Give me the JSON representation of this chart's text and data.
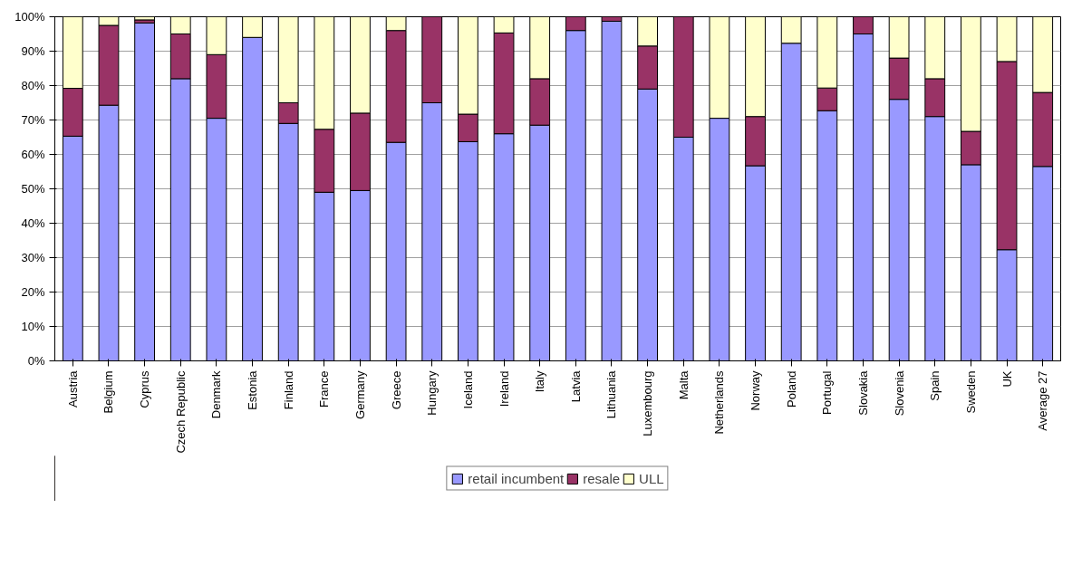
{
  "chart_data": {
    "type": "bar",
    "stacked": true,
    "categories": [
      "Austria",
      "Belgium",
      "Cyprus",
      "Czech Republic",
      "Denmark",
      "Estonia",
      "Finland",
      "France",
      "Germany",
      "Greece",
      "Hungary",
      "Iceland",
      "Ireland",
      "Italy",
      "Latvia",
      "Lithuania",
      "Luxembourg",
      "Malta",
      "Netherlands",
      "Norway",
      "Poland",
      "Portugal",
      "Slovakia",
      "Slovenia",
      "Spain",
      "Sweden",
      "UK",
      "Average 27"
    ],
    "series": [
      {
        "name": "retail incumbent",
        "color": "#9999ff",
        "values": [
          65.3,
          74.3,
          98.2,
          82,
          70.5,
          94,
          69,
          49,
          49.5,
          63.5,
          75,
          63.7,
          66,
          68.5,
          96,
          98.7,
          79,
          65,
          70.5,
          56.7,
          92.3,
          72.7,
          95,
          76,
          71,
          57,
          32.3,
          56.5
        ]
      },
      {
        "name": "resale",
        "color": "#993366",
        "values": [
          13.9,
          23.2,
          0.9,
          13,
          18.5,
          0,
          6,
          18.3,
          22.5,
          32.5,
          25,
          8,
          29.3,
          13.5,
          4,
          1.3,
          12.5,
          35,
          0,
          14.3,
          0,
          6.6,
          5,
          12,
          11,
          9.7,
          54.7,
          21.5
        ]
      },
      {
        "name": "ULL",
        "color": "#ffffcc",
        "values": [
          20.8,
          2.5,
          0.9,
          5,
          11,
          6,
          25,
          32.7,
          28,
          4,
          0,
          28.3,
          4.7,
          18,
          0,
          0,
          8.5,
          0,
          29.5,
          29,
          7.7,
          20.7,
          0,
          12,
          18,
          33.3,
          13,
          22
        ]
      }
    ],
    "ylim": [
      0,
      100
    ],
    "yticks": [
      {
        "value": 0,
        "label": "0%"
      },
      {
        "value": 10,
        "label": "10%"
      },
      {
        "value": 20,
        "label": "20%"
      },
      {
        "value": 30,
        "label": "30%"
      },
      {
        "value": 40,
        "label": "40%"
      },
      {
        "value": 50,
        "label": "50%"
      },
      {
        "value": 60,
        "label": "60%"
      },
      {
        "value": 70,
        "label": "70%"
      },
      {
        "value": 80,
        "label": "80%"
      },
      {
        "value": 90,
        "label": "90%"
      },
      {
        "value": 100,
        "label": "100%"
      }
    ],
    "grid": "y",
    "legend": "bottom"
  }
}
